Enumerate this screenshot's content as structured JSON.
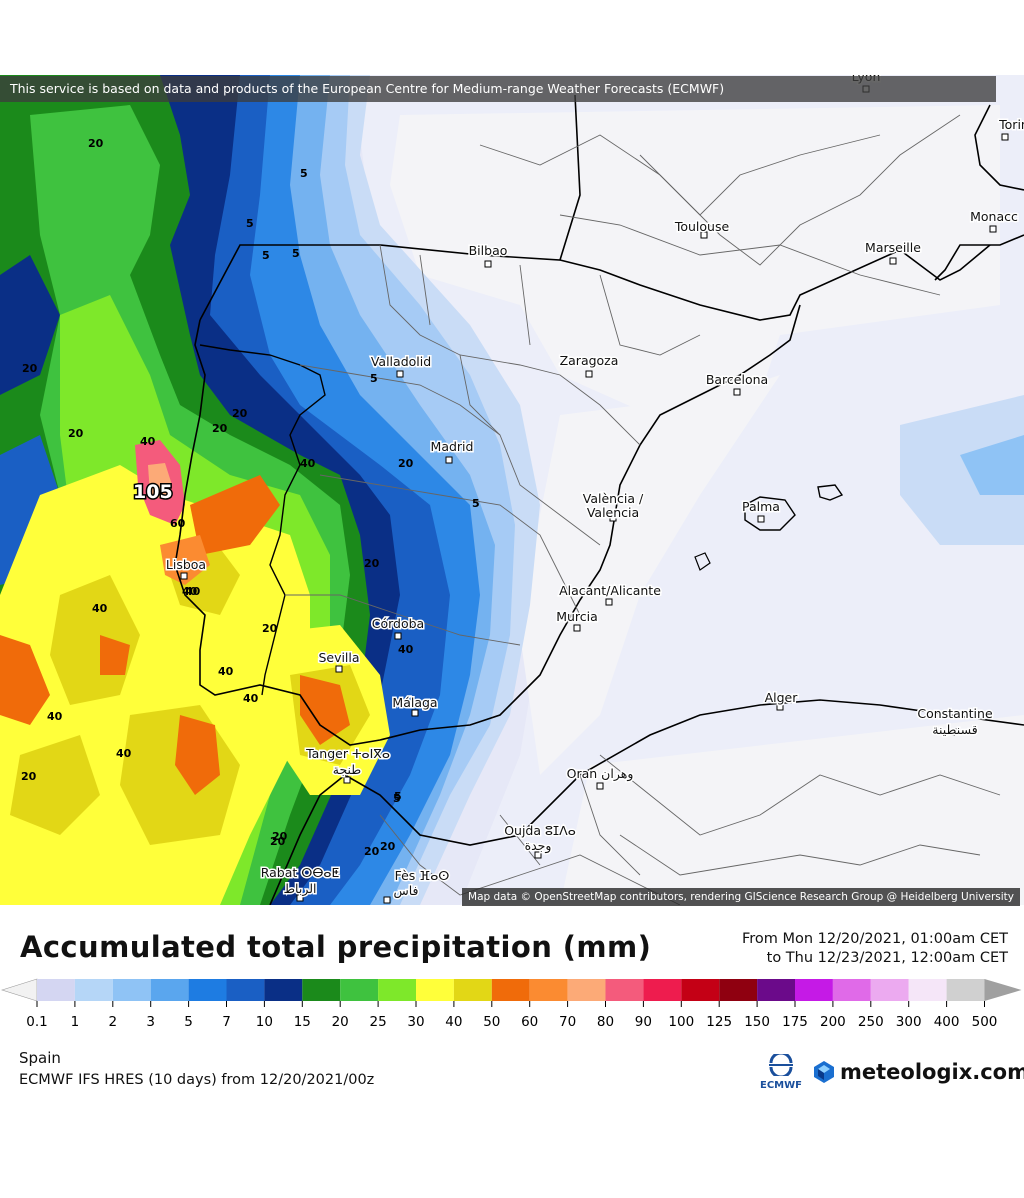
{
  "header": {
    "attribution": "This service is based on data and products of the European Centre for Medium-range Weather Forecasts (ECMWF)"
  },
  "map": {
    "attribution": "Map data © OpenStreetMap contributors, rendering GIScience Research Group @ Heidelberg University",
    "cities": [
      {
        "name": "Lyon"
      },
      {
        "name": "Torin"
      },
      {
        "name": "Toulouse"
      },
      {
        "name": "Monacc"
      },
      {
        "name": "Bilbao"
      },
      {
        "name": "Marseille"
      },
      {
        "name": "Valladolid"
      },
      {
        "name": "Zaragoza"
      },
      {
        "name": "Barcelona"
      },
      {
        "name": "Madrid"
      },
      {
        "name": "València /"
      },
      {
        "name": "Valencia"
      },
      {
        "name": "Palma"
      },
      {
        "name": "Lisboa"
      },
      {
        "name": "Alacant/Alicante"
      },
      {
        "name": "Murcia"
      },
      {
        "name": "Córdoba"
      },
      {
        "name": "Sevilla"
      },
      {
        "name": "Málaga"
      },
      {
        "name": "Alger"
      },
      {
        "name": "Constantine"
      },
      {
        "name": "قسنطينة"
      },
      {
        "name": "Tanger ⵜⴰⵏⴳⴰ"
      },
      {
        "name": "طنجة"
      },
      {
        "name": "Oran وهران"
      },
      {
        "name": "Oujda ⵓⵊⴷⴰ"
      },
      {
        "name": "وجدة"
      },
      {
        "name": "Rabat ⵔⴱⴰⵟ"
      },
      {
        "name": "الرباط"
      },
      {
        "name": "Fès ⴼⴰⵙ"
      },
      {
        "name": "فاس"
      }
    ],
    "contour_labels": [
      "20",
      "5",
      "5",
      "5",
      "5",
      "20",
      "20",
      "20",
      "20",
      "40",
      "40",
      "60",
      "40",
      "40",
      "40",
      "40",
      "20",
      "20",
      "20",
      "20",
      "40",
      "40",
      "20",
      "5",
      "5",
      "5",
      "20",
      "20",
      "40",
      "40",
      "20",
      "5"
    ],
    "max_value": "105"
  },
  "legend": {
    "title": "Accumulated total precipitation (mm)",
    "range_from": "From Mon 12/20/2021, 01:00am CET",
    "range_to": "to Thu 12/23/2021, 12:00am CET",
    "ticks": [
      "0.1",
      "1",
      "2",
      "3",
      "5",
      "7",
      "10",
      "15",
      "20",
      "25",
      "30",
      "40",
      "50",
      "60",
      "70",
      "80",
      "90",
      "100",
      "125",
      "150",
      "175",
      "200",
      "250",
      "300",
      "400",
      "500"
    ],
    "colors": [
      "#d4d6f2",
      "#b5d6f7",
      "#8fc3f5",
      "#5aa6ee",
      "#1e7ce2",
      "#1a5fc4",
      "#0a2f86",
      "#1b8a1b",
      "#3fc23f",
      "#7ee82a",
      "#ffff3a",
      "#e2d716",
      "#f06b0a",
      "#fb8b31",
      "#fcaa77",
      "#f45b7c",
      "#ee1c4e",
      "#c40015",
      "#8f0010",
      "#6b0a8a",
      "#c51ae6",
      "#e06ae8",
      "#ecaaf0",
      "#f5e6f8",
      "#d0d0d0"
    ],
    "under_color": "#f2f2f2",
    "over_color": "#a0a0a0"
  },
  "footer": {
    "region": "Spain",
    "model": "ECMWF IFS HRES (10 days) from 12/20/2021/00z",
    "ecmwf_logo": "ECMWF",
    "brand": "meteologix.com"
  }
}
